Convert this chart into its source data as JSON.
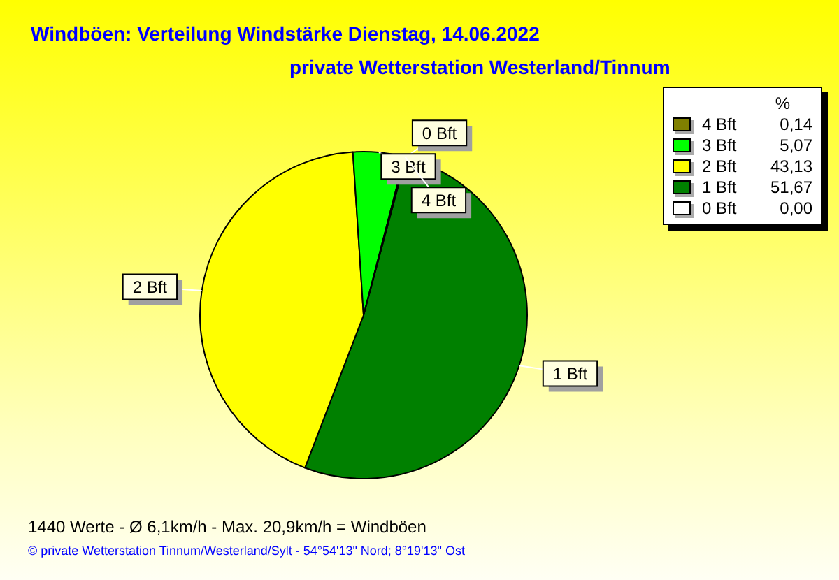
{
  "chart_data": {
    "type": "pie",
    "title": "Windböen: Verteilung Windstärke  Dienstag, 14.06.2022",
    "subtitle": "private Wetterstation Westerland/Tinnum",
    "categories": [
      "4 Bft",
      "3 Bft",
      "2 Bft",
      "1 Bft",
      "0 Bft"
    ],
    "values": [
      0.14,
      5.07,
      43.13,
      51.67,
      0.0
    ],
    "value_labels": [
      "0,14",
      "5,07",
      "43,13",
      "51,67",
      "0,00"
    ],
    "colors": [
      "#808000",
      "#00ff00",
      "#ffff00",
      "#008000",
      "#ffffff"
    ],
    "legend": "right",
    "legend_title": "%",
    "annotations": [
      "1440 Werte   -   Ø 6,1km/h  -  Max. 20,9km/h = Windböen",
      "© private Wetterstation Tinnum/Westerland/Sylt  -  54°54'13\" Nord; 8°19'13\" Ost"
    ]
  }
}
